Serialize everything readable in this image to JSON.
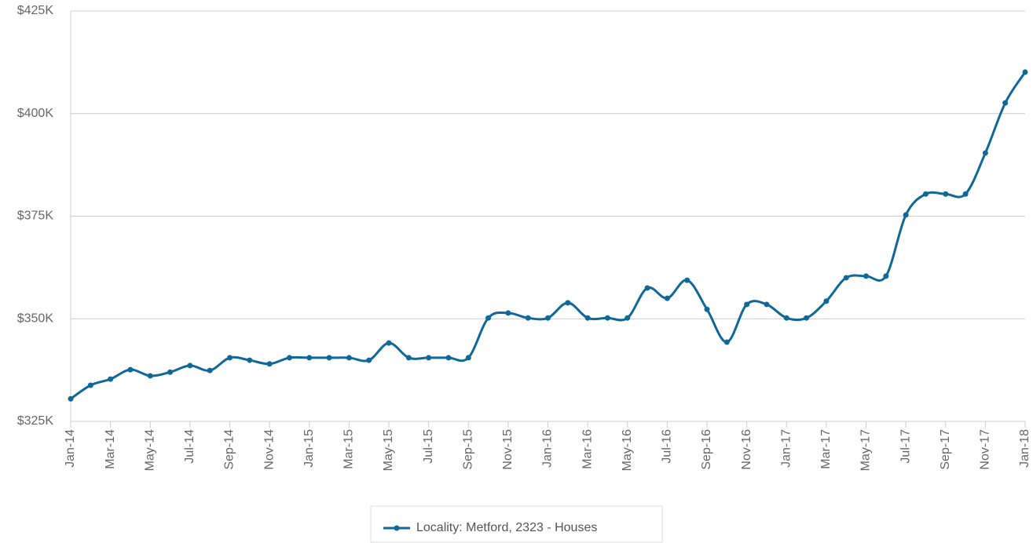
{
  "chart_data": {
    "type": "line",
    "categories": [
      "Jan-14",
      null,
      "Mar-14",
      null,
      "May-14",
      null,
      "Jul-14",
      null,
      "Sep-14",
      null,
      "Nov-14",
      null,
      "Jan-15",
      null,
      "Mar-15",
      null,
      "May-15",
      null,
      "Jul-15",
      null,
      "Sep-15",
      null,
      "Nov-15",
      null,
      "Jan-16",
      null,
      "Mar-16",
      null,
      "May-16",
      null,
      "Jul-16",
      null,
      "Sep-16",
      null,
      "Nov-16",
      null,
      "Jan-17",
      null,
      "Mar-17",
      null,
      "May-17",
      null,
      "Jul-17",
      null,
      "Sep-17",
      null,
      "Nov-17",
      null,
      "Jan-18"
    ],
    "series": [
      {
        "name": "Locality: Metford, 2323 - Houses",
        "color": "#0f6898",
        "values": [
          330.5,
          333.8,
          335.3,
          337.6,
          336.1,
          337.0,
          338.6,
          337.4,
          340.5,
          339.9,
          339.0,
          340.5,
          340.5,
          340.5,
          340.5,
          339.9,
          344.1,
          340.5,
          340.5,
          340.5,
          340.5,
          350.2,
          351.4,
          350.2,
          350.2,
          353.9,
          350.2,
          350.2,
          350.2,
          357.5,
          355.0,
          359.4,
          352.3,
          344.3,
          353.5,
          353.5,
          350.2,
          350.2,
          354.3,
          360.0,
          360.4,
          360.4,
          375.3,
          380.4,
          380.4,
          380.4,
          390.4,
          402.6,
          410.1
        ]
      }
    ],
    "ylim": [
      325,
      425
    ],
    "yticks": [
      {
        "value": 325,
        "label": "$325K"
      },
      {
        "value": 350,
        "label": "$350K"
      },
      {
        "value": 375,
        "label": "$375K"
      },
      {
        "value": 400,
        "label": "$400K"
      },
      {
        "value": 425,
        "label": "$425K"
      }
    ],
    "grid": true
  }
}
